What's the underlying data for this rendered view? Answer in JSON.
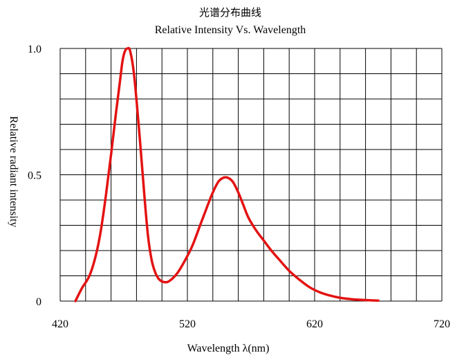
{
  "chart_data": {
    "type": "line",
    "title": "光谱分布曲线",
    "subtitle": "Relative Intensity Vs. Wavelength",
    "xlabel": "Wavelength λ(nm)",
    "ylabel": "Relative radiant intensity",
    "xlim": [
      420,
      720
    ],
    "ylim": [
      0,
      1.0
    ],
    "x_ticks": [
      420,
      520,
      620,
      720
    ],
    "x_tick_labels": [
      "420",
      "520",
      "620",
      "720"
    ],
    "y_ticks": [
      0,
      0.5,
      1.0
    ],
    "y_tick_labels": [
      "0",
      "0.5",
      "1.0"
    ],
    "grid": true,
    "colors": {
      "series": "#e41212",
      "grid": "#000000"
    },
    "series": [
      {
        "x": [
          432,
          437,
          443,
          448,
          452,
          456,
          460,
          464,
          467,
          469,
          471,
          473,
          475,
          478,
          482,
          486,
          489,
          492,
          495,
          498,
          502,
          506,
          512,
          518,
          524,
          530,
          536,
          540,
          544,
          547,
          550,
          553,
          556,
          560,
          564,
          568,
          574,
          580,
          586,
          592,
          600,
          608,
          616,
          624,
          632,
          640,
          648,
          656,
          664,
          670
        ],
        "values": [
          0.0,
          0.05,
          0.1,
          0.18,
          0.28,
          0.42,
          0.58,
          0.75,
          0.87,
          0.95,
          0.99,
          1.0,
          0.99,
          0.9,
          0.68,
          0.43,
          0.26,
          0.16,
          0.11,
          0.085,
          0.075,
          0.08,
          0.11,
          0.16,
          0.22,
          0.3,
          0.38,
          0.43,
          0.47,
          0.485,
          0.49,
          0.485,
          0.47,
          0.43,
          0.38,
          0.33,
          0.28,
          0.24,
          0.2,
          0.165,
          0.12,
          0.085,
          0.055,
          0.035,
          0.022,
          0.013,
          0.008,
          0.005,
          0.003,
          0.002
        ]
      }
    ]
  }
}
